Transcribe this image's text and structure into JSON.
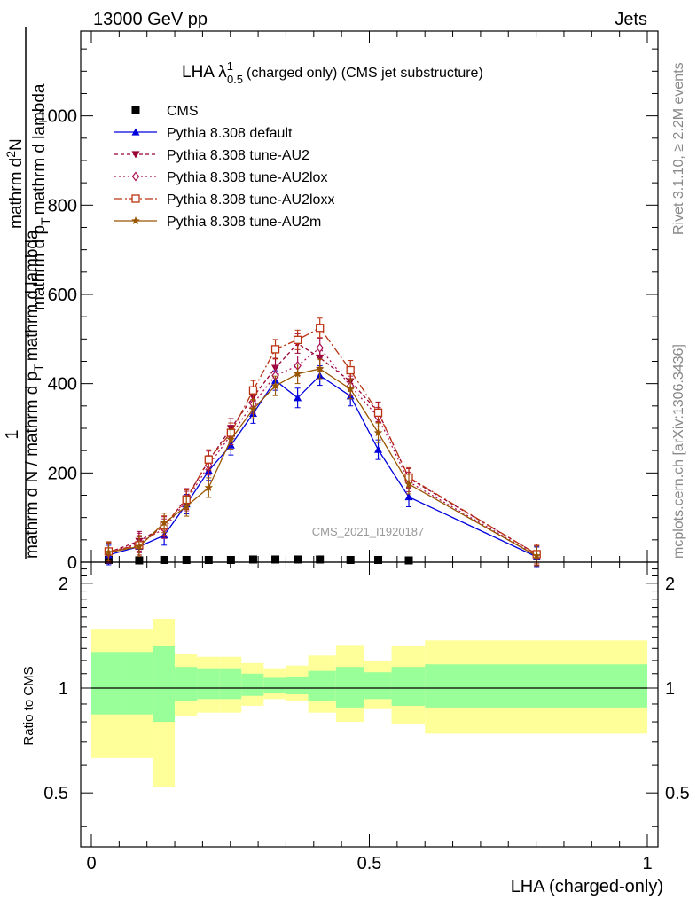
{
  "header": {
    "left": "13000 GeV pp",
    "right": "Jets"
  },
  "side_labels": {
    "rivet": "Rivet 3.1.10, ≥ 2.2M events",
    "mcplots": "mcplots.cern.ch [arXiv:1306.3436]"
  },
  "watermark": "CMS_2021_I1920187",
  "colors": {
    "cms": "#000000",
    "default": "#0000dd",
    "au2": "#990033",
    "au2lox": "#aa1155",
    "au2loxx": "#bb3311",
    "au2m": "#995500",
    "band_inner": "#99ff99",
    "band_outer": "#ffff99"
  },
  "chart_data": [
    {
      "type": "line",
      "title": "LHA λ",
      "title_sup": "1",
      "title_sub": "0.5",
      "title_rest": "(charged only) (CMS jet substructure)",
      "ylabel_top": "1",
      "ylabel_bottom": "mathrm d N / mathrm d p",
      "ylabel_bottom_sub": "T",
      "ylabel_bottom_rest": "mathrm d lambda",
      "ylabel_frac_num": "mathrm d",
      "ylabel_frac_num_sup": "2",
      "ylabel_frac_num_rest": "N",
      "ylabel_frac_den": "mathrm d p",
      "ylabel_frac_den_sub": "T",
      "ylabel_frac_den_rest": "mathrm d lambda",
      "xlim": [
        0,
        1
      ],
      "ylim": [
        0,
        1190
      ],
      "y_ticks": [
        0,
        200,
        400,
        600,
        800,
        1000
      ],
      "legend_position": "top-left",
      "x": [
        0.031,
        0.086,
        0.131,
        0.171,
        0.211,
        0.251,
        0.291,
        0.331,
        0.371,
        0.411,
        0.466,
        0.516,
        0.571,
        0.801
      ],
      "series": [
        {
          "name": "CMS",
          "key": "cms",
          "marker": "square",
          "dash": "",
          "values": [
            5,
            4,
            5,
            5,
            5,
            5,
            6,
            6,
            6,
            6,
            5,
            5,
            4,
            null
          ]
        },
        {
          "name": "Pythia 8.308 default",
          "key": "default",
          "marker": "triangle-up",
          "dash": "",
          "values": [
            16,
            35,
            60,
            130,
            205,
            262,
            333,
            407,
            368,
            418,
            372,
            252,
            146,
            12
          ]
        },
        {
          "name": "Pythia 8.308 tune-AU2",
          "key": "au2",
          "marker": "triangle-down",
          "dash": "4,3",
          "values": [
            22,
            47,
            80,
            143,
            227,
            300,
            370,
            435,
            490,
            458,
            405,
            337,
            188,
            18
          ]
        },
        {
          "name": "Pythia 8.308 tune-AU2lox",
          "key": "au2lox",
          "marker": "diamond",
          "dash": "2,3",
          "values": [
            20,
            43,
            75,
            137,
            217,
            285,
            355,
            418,
            440,
            480,
            395,
            325,
            180,
            15
          ]
        },
        {
          "name": "Pythia 8.308 tune-AU2loxx",
          "key": "au2loxx",
          "marker": "open-square",
          "dash": "9,3,2,3",
          "values": [
            24,
            38,
            82,
            140,
            230,
            290,
            385,
            477,
            498,
            525,
            430,
            335,
            190,
            18
          ]
        },
        {
          "name": "Pythia 8.308 tune-AU2m",
          "key": "au2m",
          "marker": "star",
          "dash": "",
          "values": [
            22,
            35,
            88,
            125,
            167,
            275,
            343,
            395,
            422,
            433,
            388,
            290,
            175,
            14
          ]
        }
      ]
    },
    {
      "type": "area",
      "xlabel": "LHA (charged-only)",
      "ylabel": "Ratio to CMS",
      "xlim": [
        0,
        1
      ],
      "ylim": [
        0.35,
        2.3
      ],
      "y_ticks": [
        0.5,
        1,
        2
      ],
      "x_ticks": [
        0,
        0.5,
        1
      ],
      "x_tick_labels": [
        "0",
        "0.5",
        "1"
      ],
      "bin_edges": [
        0,
        0.055,
        0.11,
        0.15,
        0.19,
        0.23,
        0.27,
        0.31,
        0.35,
        0.39,
        0.44,
        0.49,
        0.54,
        0.6,
        1.0
      ],
      "inner_band": {
        "low": [
          0.84,
          0.84,
          0.8,
          0.92,
          0.93,
          0.93,
          0.95,
          0.97,
          0.96,
          0.92,
          0.88,
          0.93,
          0.89,
          0.88,
          0.63
        ],
        "high": [
          1.27,
          1.27,
          1.32,
          1.15,
          1.14,
          1.14,
          1.1,
          1.07,
          1.08,
          1.12,
          1.15,
          1.11,
          1.15,
          1.17,
          1.5
        ]
      },
      "outer_band": {
        "low": [
          0.63,
          0.63,
          0.52,
          0.83,
          0.85,
          0.85,
          0.89,
          0.93,
          0.92,
          0.85,
          0.8,
          0.87,
          0.79,
          0.74,
          0.35
        ],
        "high": [
          1.48,
          1.48,
          1.58,
          1.25,
          1.23,
          1.23,
          1.18,
          1.14,
          1.16,
          1.24,
          1.33,
          1.2,
          1.32,
          1.37,
          1.87
        ]
      }
    }
  ]
}
